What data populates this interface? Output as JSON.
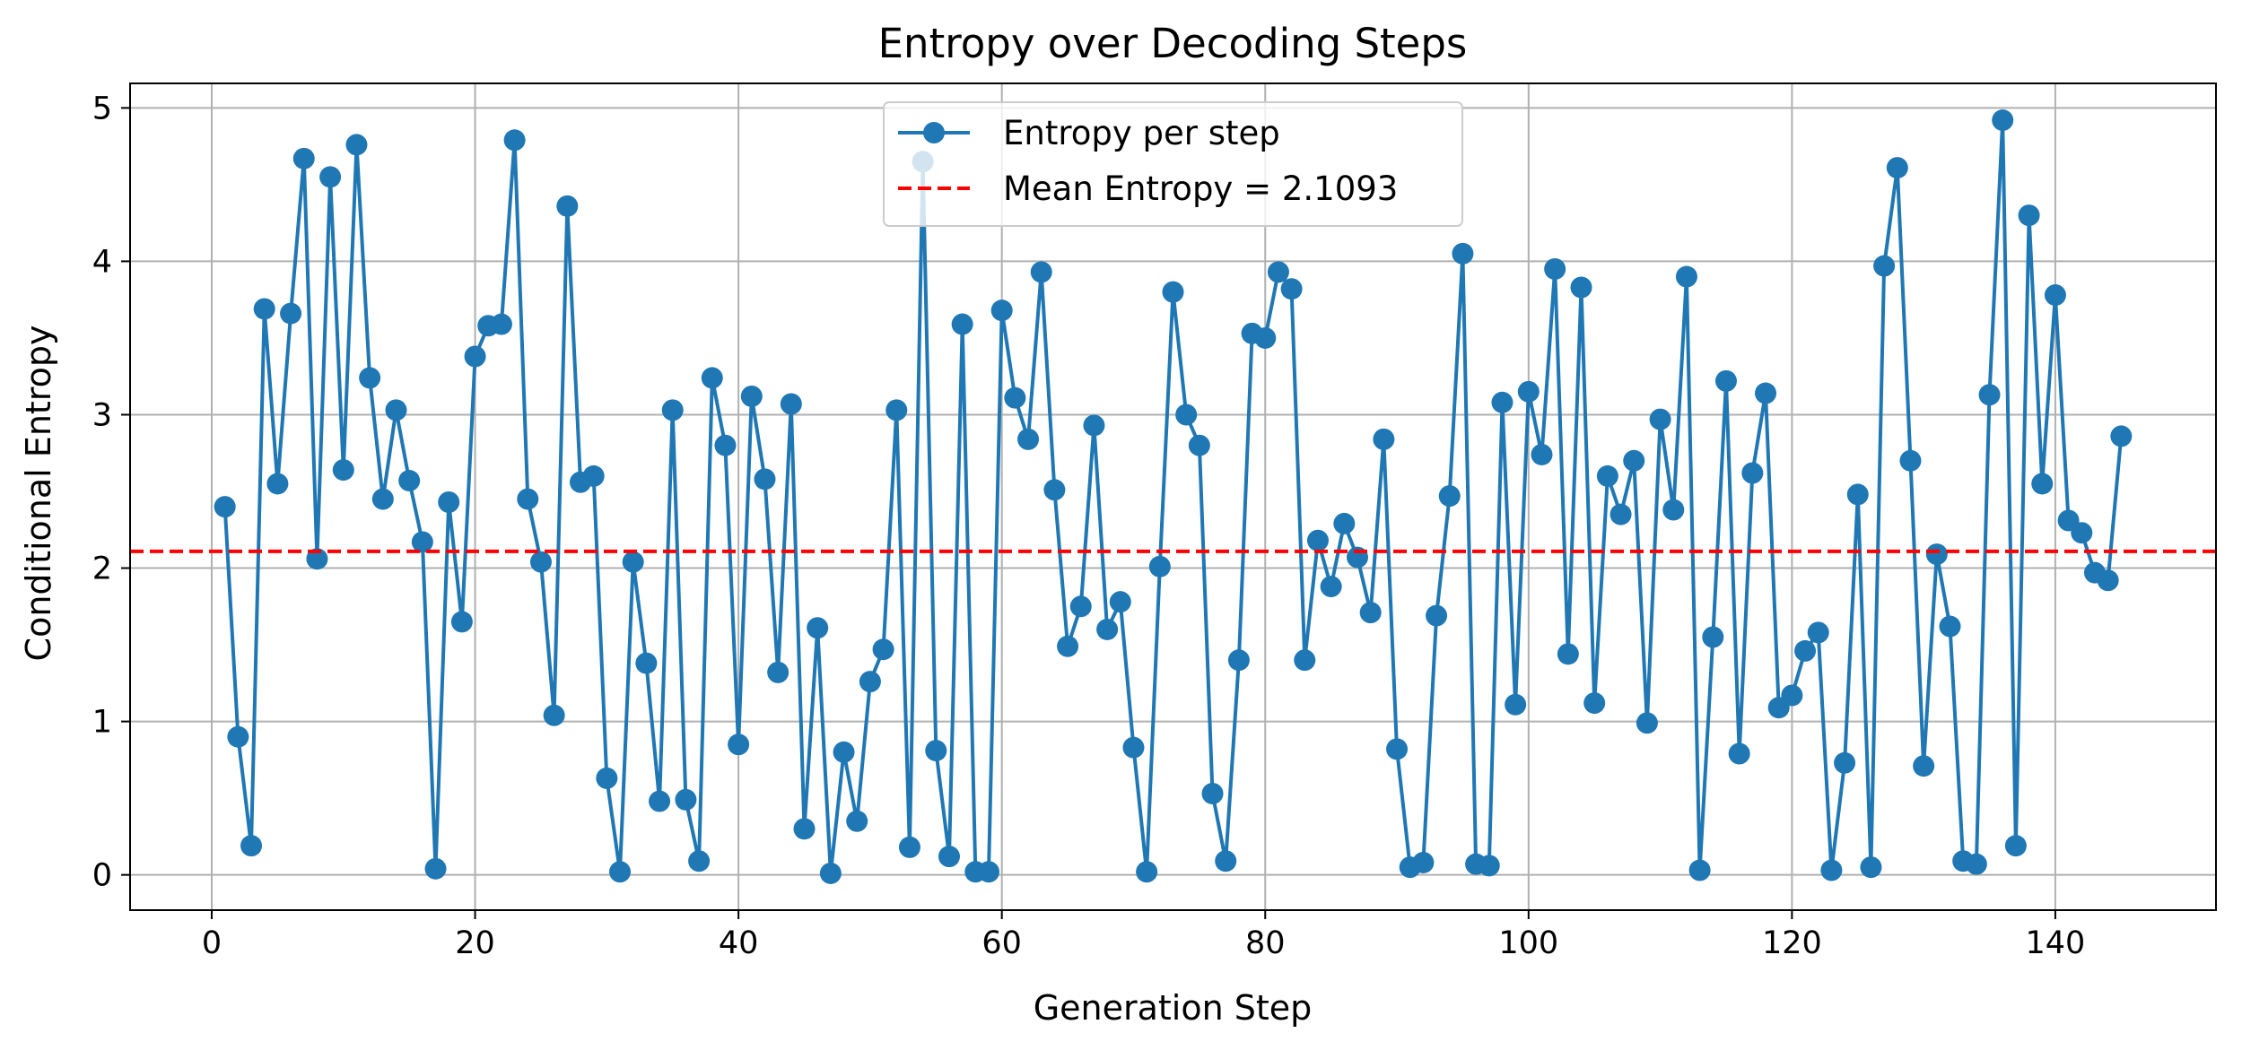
{
  "chart_data": {
    "type": "line",
    "title": "Entropy over Decoding Steps",
    "xlabel": "Generation Step",
    "ylabel": "Conditional Entropy",
    "xlim": [
      -6.2,
      152.2
    ],
    "ylim": [
      -0.23,
      5.16
    ],
    "xticks": [
      0,
      20,
      40,
      60,
      80,
      100,
      120,
      140
    ],
    "yticks": [
      0,
      1,
      2,
      3,
      4,
      5
    ],
    "grid": true,
    "legend_position": "upper center",
    "series": [
      {
        "name": "Entropy per step",
        "color": "#1f77b4",
        "marker": "circle",
        "x": [
          1,
          2,
          3,
          4,
          5,
          6,
          7,
          8,
          9,
          10,
          11,
          12,
          13,
          14,
          15,
          16,
          17,
          18,
          19,
          20,
          21,
          22,
          23,
          24,
          25,
          26,
          27,
          28,
          29,
          30,
          31,
          32,
          33,
          34,
          35,
          36,
          37,
          38,
          39,
          40,
          41,
          42,
          43,
          44,
          45,
          46,
          47,
          48,
          49,
          50,
          51,
          52,
          53,
          54,
          55,
          56,
          57,
          58,
          59,
          60,
          61,
          62,
          63,
          64,
          65,
          66,
          67,
          68,
          69,
          70,
          71,
          72,
          73,
          74,
          75,
          76,
          77,
          78,
          79,
          80,
          81,
          82,
          83,
          84,
          85,
          86,
          87,
          88,
          89,
          90,
          91,
          92,
          93,
          94,
          95,
          96,
          97,
          98,
          99,
          100,
          101,
          102,
          103,
          104,
          105,
          106,
          107,
          108,
          109,
          110,
          111,
          112,
          113,
          114,
          115,
          116,
          117,
          118,
          119,
          120,
          121,
          122,
          123,
          124,
          125,
          126,
          127,
          128,
          129,
          130,
          131,
          132,
          133,
          134,
          135,
          136,
          137,
          138,
          139,
          140,
          141,
          142,
          143,
          144,
          145
        ],
        "y": [
          2.4,
          0.9,
          0.19,
          3.69,
          2.55,
          3.66,
          4.67,
          2.06,
          4.55,
          2.64,
          4.76,
          3.24,
          2.45,
          3.03,
          2.57,
          2.17,
          0.04,
          2.43,
          1.65,
          3.38,
          3.58,
          3.59,
          4.79,
          2.45,
          2.04,
          1.04,
          4.36,
          2.56,
          2.6,
          0.63,
          0.02,
          2.04,
          1.38,
          0.48,
          3.03,
          0.49,
          0.09,
          3.24,
          2.8,
          0.85,
          3.12,
          2.58,
          1.32,
          3.07,
          0.3,
          1.61,
          0.01,
          0.8,
          0.35,
          1.26,
          1.47,
          3.03,
          0.18,
          4.65,
          0.81,
          0.12,
          3.59,
          0.02,
          0.02,
          3.68,
          3.11,
          2.84,
          3.93,
          2.51,
          1.49,
          1.75,
          2.93,
          1.6,
          1.78,
          0.83,
          0.02,
          2.01,
          3.8,
          3.0,
          2.8,
          0.53,
          0.09,
          1.4,
          3.53,
          3.5,
          3.93,
          3.82,
          1.4,
          2.18,
          1.88,
          2.29,
          2.07,
          1.71,
          2.84,
          0.82,
          0.05,
          0.08,
          1.69,
          2.47,
          4.05,
          0.07,
          0.06,
          3.08,
          1.11,
          3.15,
          2.74,
          3.95,
          1.44,
          3.83,
          1.12,
          2.6,
          2.35,
          2.7,
          0.99,
          2.97,
          2.38,
          3.9,
          0.03,
          1.55,
          3.22,
          0.79,
          2.62,
          3.14,
          1.09,
          1.17,
          1.46,
          1.58,
          0.03,
          0.73,
          2.48,
          0.05,
          3.97,
          4.61,
          2.7,
          0.71,
          2.09,
          1.62,
          0.09,
          0.07,
          3.13,
          4.92,
          0.19,
          4.3,
          2.55,
          3.78,
          2.31,
          2.23,
          1.97,
          1.92,
          2.86
        ]
      },
      {
        "name": "Mean Entropy = 2.1093",
        "color": "#ff0000",
        "style": "dashed",
        "y_constant": 2.1093
      }
    ]
  }
}
